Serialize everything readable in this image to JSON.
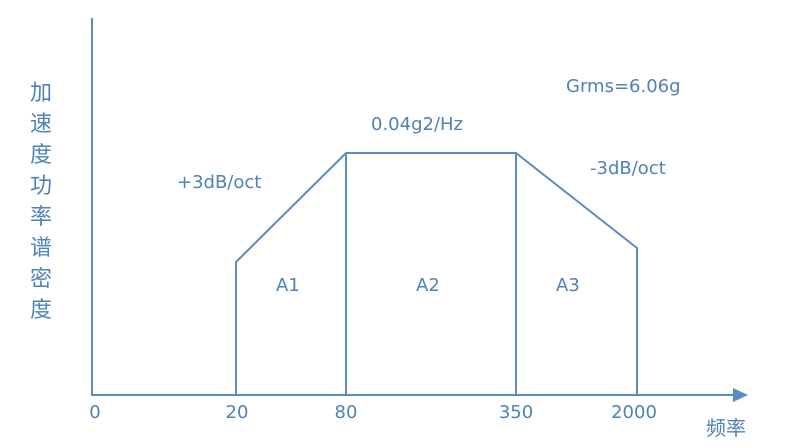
{
  "y_axis_label": "加速度功率谱密度",
  "x_axis_label": "频率",
  "x_ticks": [
    "0",
    "20",
    "80",
    "350",
    "2000"
  ],
  "annotations": {
    "grms": "Grms=6.06g",
    "plateau": "0.04g2/Hz",
    "rise_slope": "+3dB/oct",
    "fall_slope": "-3dB/oct"
  },
  "regions": [
    "A1",
    "A2",
    "A3"
  ],
  "colors": {
    "line": "#5b8cc0",
    "text": "#4e82b8"
  }
}
